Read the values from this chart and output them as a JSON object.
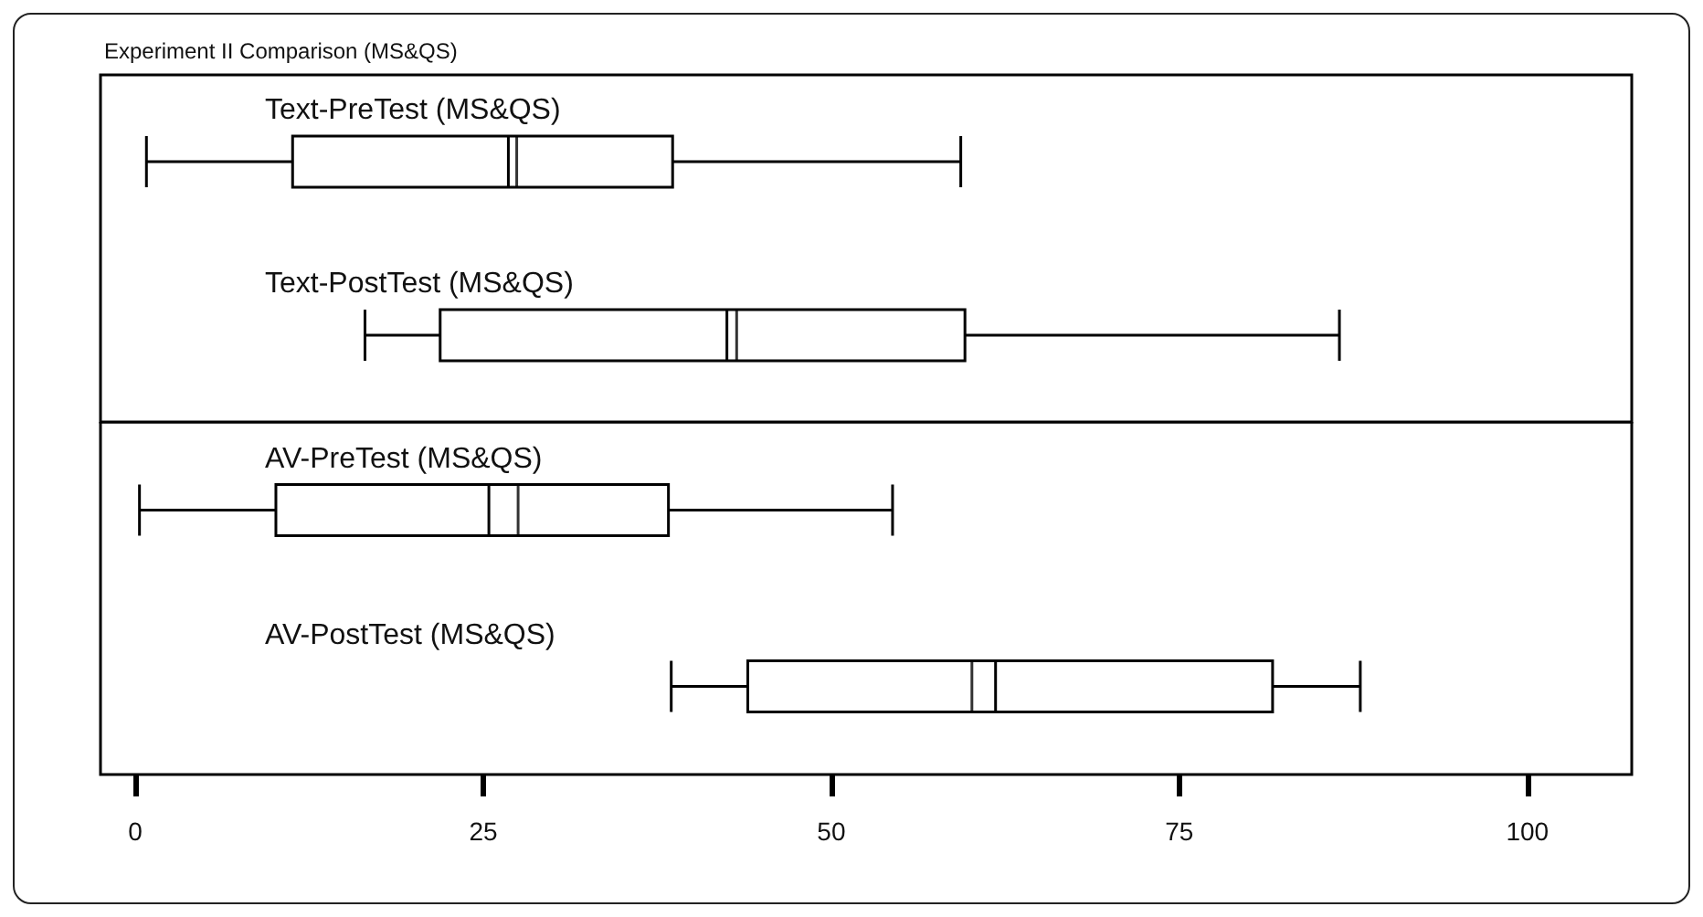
{
  "chart_data": [
    {
      "type": "box",
      "title": "Experiment II Comparison (MS&QS)",
      "orientation": "horizontal",
      "categories": [
        "Text-PreTest (MS&QS)",
        "Text-PostTest (MS&QS)"
      ],
      "boxes": [
        {
          "low": 0.8,
          "q1": 11.3,
          "median": 26.8,
          "q3": 38.6,
          "high": 59.3,
          "mean": 27.4
        },
        {
          "low": 16.5,
          "q1": 21.9,
          "median": 42.5,
          "q3": 59.6,
          "high": 86.5,
          "mean": 43.2
        }
      ],
      "xlim": [
        -2.5,
        107.5
      ],
      "xticks": [
        0,
        25,
        50,
        75,
        100
      ],
      "tick_labels": "y"
    },
    {
      "type": "box",
      "orientation": "horizontal",
      "categories": [
        "AV-PreTest (MS&QS)",
        "AV-PostTest (MS&QS)"
      ],
      "boxes": [
        {
          "low": 0.3,
          "q1": 10.1,
          "median": 25.4,
          "q3": 38.3,
          "high": 54.4,
          "mean": 27.5
        },
        {
          "low": 38.5,
          "q1": 44.0,
          "median": 61.8,
          "q3": 81.7,
          "high": 88.0,
          "mean": 60.1
        }
      ],
      "xlim": [
        -2.5,
        107.5
      ],
      "xticks": [
        0,
        25,
        50,
        75,
        100
      ]
    }
  ]
}
